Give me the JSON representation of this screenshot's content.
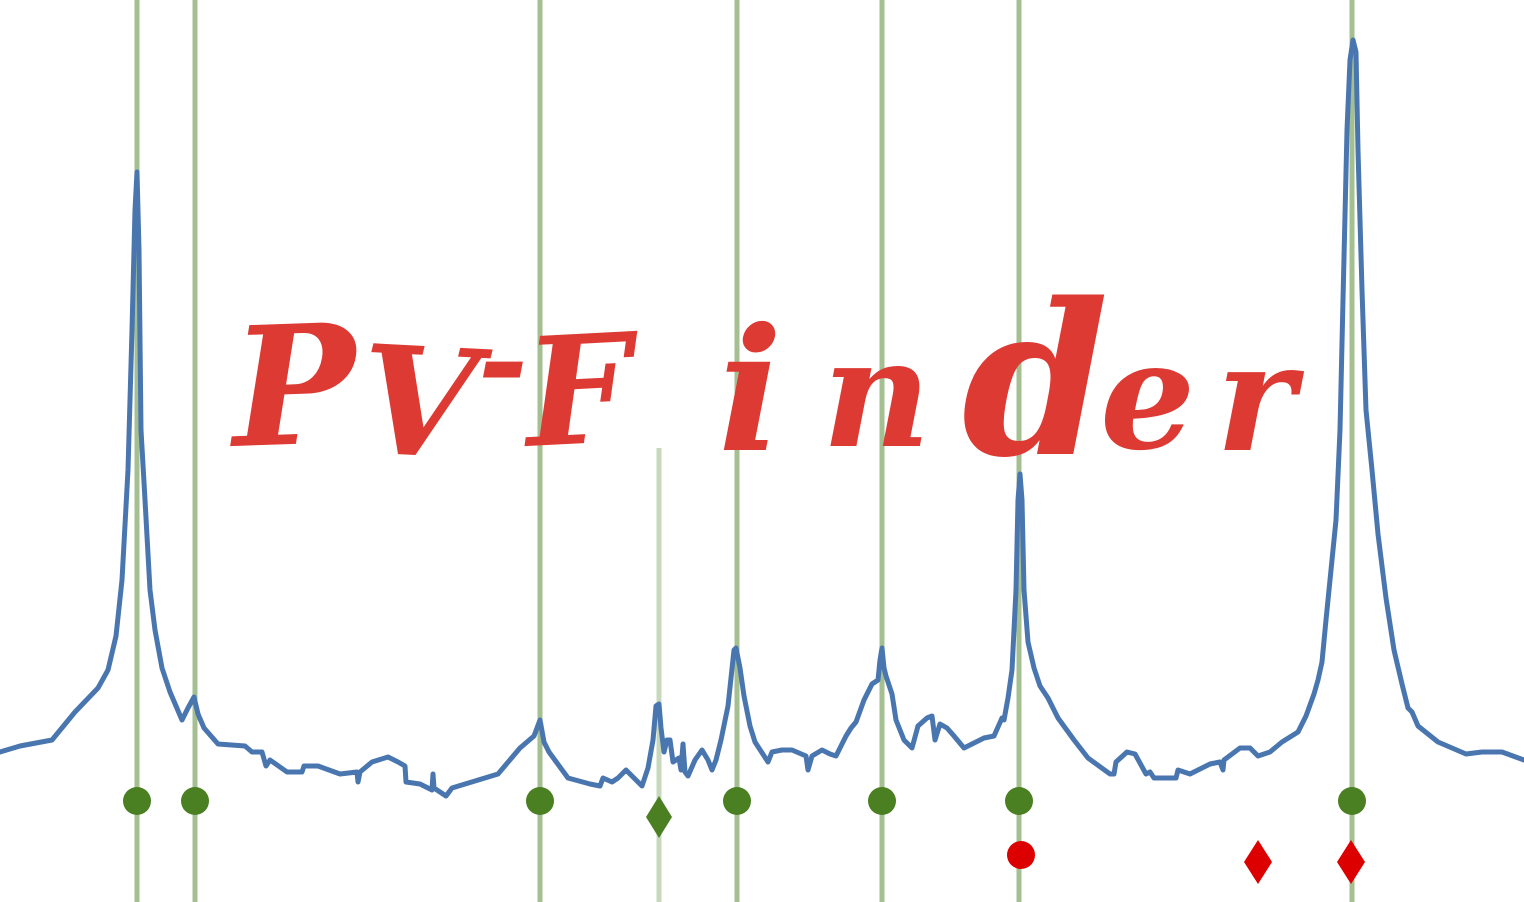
{
  "logo": {
    "letters": [
      "P",
      "V",
      "-",
      "F",
      "i",
      "n",
      "d",
      "e",
      "r"
    ],
    "colors": {
      "title": "#dc3a33",
      "curve": "#4a76b0",
      "line": "#4a7f22",
      "marker_true": "#4a7f22",
      "marker_pred": "#dd0000"
    }
  }
}
